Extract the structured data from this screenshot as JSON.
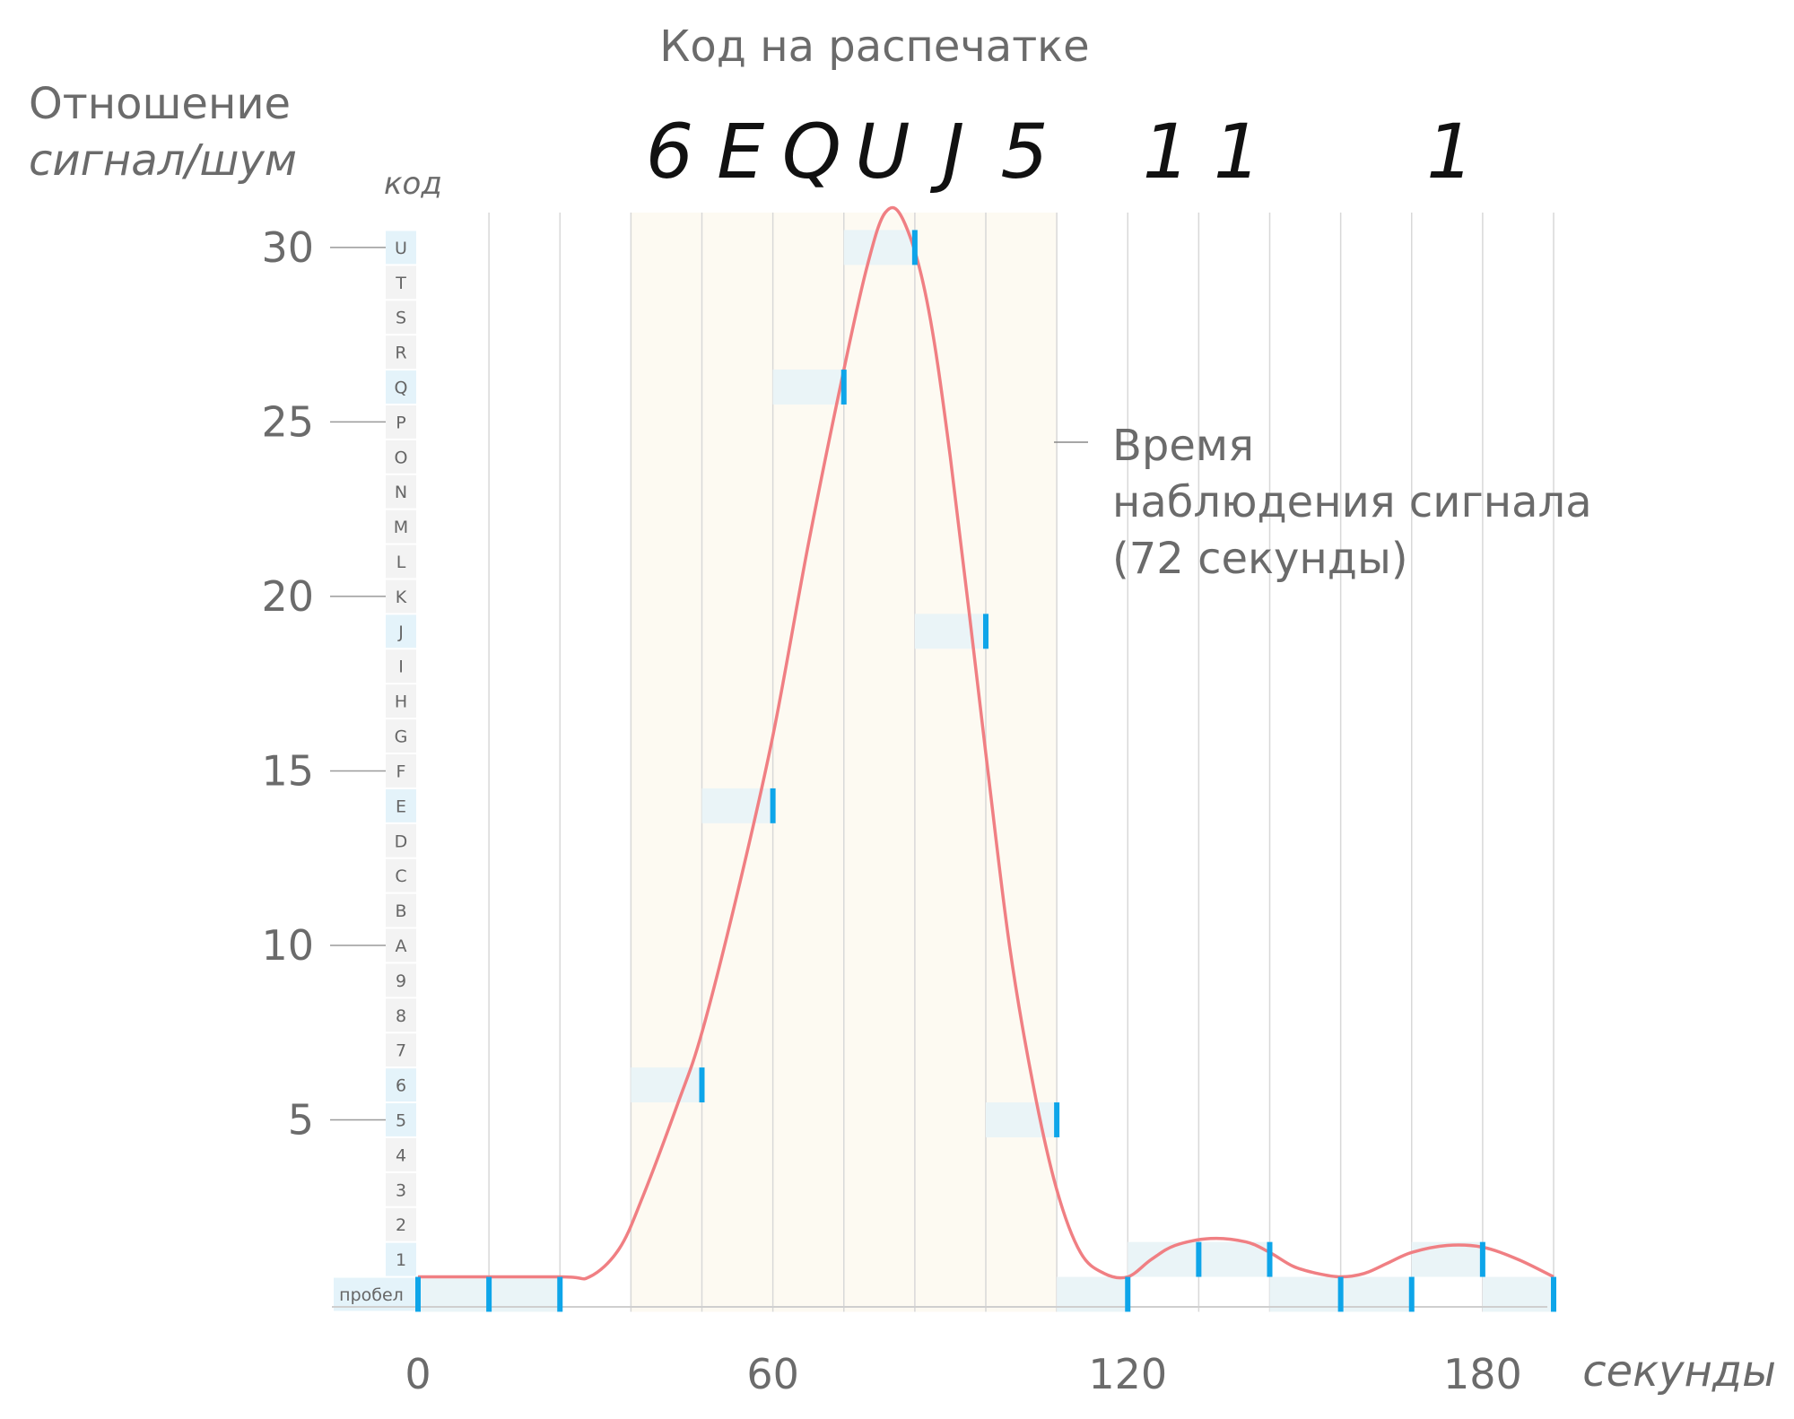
{
  "title_top": "Код на распечатке",
  "ylabel_line1": "Отношение",
  "ylabel_line2": "сигнал/шум",
  "code_column_label": "код",
  "xlabel": "секунды",
  "annotation": {
    "line1": "Время",
    "line2": "наблюдения сигнала",
    "line3": "(72 секунды)"
  },
  "colors": {
    "curve": "#f07f83",
    "marker": "#0ea5e9",
    "window": "#fdfaf2",
    "step": "#eaf4f7",
    "code_highlight": "#e4f3fa",
    "code_cell": "#f3f3f3"
  },
  "chart_data": {
    "type": "line",
    "xlim": [
      0,
      192
    ],
    "ylim": [
      0,
      31
    ],
    "x_ticks": [
      0,
      60,
      120,
      180
    ],
    "y_ticks": [
      5,
      10,
      15,
      20,
      25,
      30
    ],
    "code_levels": [
      "пробел",
      "1",
      "2",
      "3",
      "4",
      "5",
      "6",
      "7",
      "8",
      "9",
      "A",
      "B",
      "C",
      "D",
      "E",
      "F",
      "G",
      "H",
      "I",
      "J",
      "K",
      "L",
      "M",
      "N",
      "O",
      "P",
      "Q",
      "R",
      "S",
      "T",
      "U"
    ],
    "highlighted_codes": [
      "пробел",
      "1",
      "5",
      "6",
      "E",
      "J",
      "Q",
      "U"
    ],
    "printed_codes": [
      {
        "text": "6",
        "x": 48
      },
      {
        "text": "E",
        "x": 60
      },
      {
        "text": "Q",
        "x": 72
      },
      {
        "text": "U",
        "x": 84
      },
      {
        "text": "J",
        "x": 96
      },
      {
        "text": "5",
        "x": 108
      },
      {
        "text": "1",
        "x": 132
      },
      {
        "text": "1",
        "x": 144
      },
      {
        "text": "1",
        "x": 180
      }
    ],
    "observation_window": {
      "x_start": 36,
      "x_end": 108,
      "duration_seconds": 72
    },
    "sample_bars": [
      {
        "x_start": 0,
        "x_end": 12,
        "value": 0
      },
      {
        "x_start": 12,
        "x_end": 24,
        "value": 0
      },
      {
        "x_start": 36,
        "x_end": 48,
        "value": 6
      },
      {
        "x_start": 48,
        "x_end": 60,
        "value": 14
      },
      {
        "x_start": 60,
        "x_end": 72,
        "value": 26
      },
      {
        "x_start": 72,
        "x_end": 84,
        "value": 30
      },
      {
        "x_start": 84,
        "x_end": 96,
        "value": 19
      },
      {
        "x_start": 96,
        "x_end": 108,
        "value": 5
      },
      {
        "x_start": 108,
        "x_end": 120,
        "value": 0
      },
      {
        "x_start": 120,
        "x_end": 132,
        "value": 1
      },
      {
        "x_start": 132,
        "x_end": 144,
        "value": 1
      },
      {
        "x_start": 144,
        "x_end": 156,
        "value": 0
      },
      {
        "x_start": 156,
        "x_end": 168,
        "value": 0
      },
      {
        "x_start": 168,
        "x_end": 180,
        "value": 1
      },
      {
        "x_start": 180,
        "x_end": 192,
        "value": 0
      }
    ],
    "curve": [
      [
        0,
        0.5
      ],
      [
        24,
        0.5
      ],
      [
        29,
        0.5
      ],
      [
        34,
        1.3
      ],
      [
        38,
        2.8
      ],
      [
        44,
        5.5
      ],
      [
        48,
        7.5
      ],
      [
        54,
        11.5
      ],
      [
        60,
        16.0
      ],
      [
        66,
        21.5
      ],
      [
        72,
        26.5
      ],
      [
        76,
        29.5
      ],
      [
        79,
        31.0
      ],
      [
        82,
        30.8
      ],
      [
        86,
        28.5
      ],
      [
        90,
        24.0
      ],
      [
        96,
        15.5
      ],
      [
        100,
        10.0
      ],
      [
        104,
        6.0
      ],
      [
        108,
        3.0
      ],
      [
        112,
        1.2
      ],
      [
        116,
        0.6
      ],
      [
        120,
        0.5
      ],
      [
        124,
        1.0
      ],
      [
        128,
        1.4
      ],
      [
        134,
        1.6
      ],
      [
        140,
        1.5
      ],
      [
        144,
        1.2
      ],
      [
        148,
        0.8
      ],
      [
        152,
        0.6
      ],
      [
        156,
        0.5
      ],
      [
        160,
        0.6
      ],
      [
        164,
        0.9
      ],
      [
        168,
        1.2
      ],
      [
        174,
        1.4
      ],
      [
        180,
        1.35
      ],
      [
        186,
        1.0
      ],
      [
        192,
        0.5
      ]
    ]
  }
}
